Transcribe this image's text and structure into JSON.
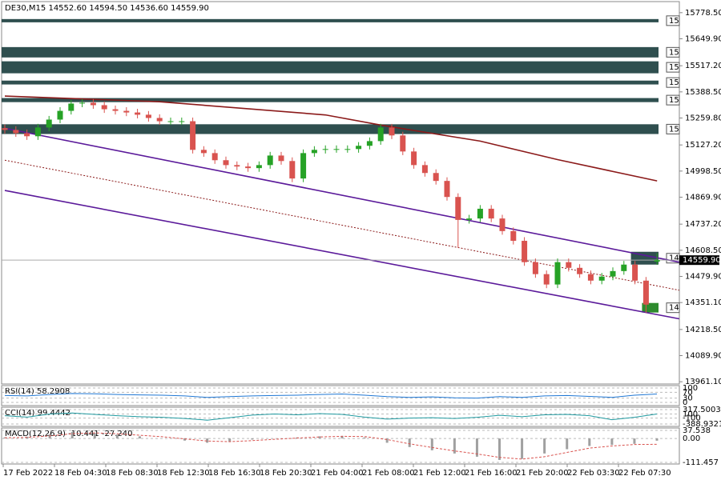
{
  "chart_data": {
    "type": "candlestick",
    "title": "DE30,M15  14552.60 14594.50 14536.60 14559.90",
    "ylim": [
      13950,
      15833
    ],
    "yticks": [
      {
        "value": 15778.5,
        "label": "15778.50"
      },
      {
        "value": 15649.9,
        "label": "15649.90"
      },
      {
        "value": 15517.2,
        "label": "15517.20"
      },
      {
        "value": 15388.5,
        "label": "15388.50"
      },
      {
        "value": 15259.8,
        "label": "15259.80"
      },
      {
        "value": 15127.2,
        "label": "15127.20"
      },
      {
        "value": 14998.5,
        "label": "14998.50"
      },
      {
        "value": 14869.9,
        "label": "14869.90"
      },
      {
        "value": 14737.2,
        "label": "14737.20"
      },
      {
        "value": 14608.5,
        "label": "14608.50"
      },
      {
        "value": 14479.9,
        "label": "14479.90"
      },
      {
        "value": 14351.1,
        "label": "14351.10"
      },
      {
        "value": 14218.5,
        "label": "14218.50"
      },
      {
        "value": 14089.9,
        "label": "14089.90"
      },
      {
        "value": 13961.1,
        "label": "13961.10"
      }
    ],
    "xtick_labels": [
      "17 Feb 2022",
      "18 Feb 04:30",
      "18 Feb 08:30",
      "18 Feb 12:30",
      "18 Feb 16:30",
      "18 Feb 20:30",
      "21 Feb 04:00",
      "21 Feb 08:00",
      "21 Feb 12:00",
      "21 Feb 16:00",
      "21 Feb 20:00",
      "22 Feb 03:30",
      "22 Feb 07:30"
    ],
    "up_color": "#26a226",
    "down_color": "#d9534f",
    "open": [
      15210,
      15201,
      15185,
      15170,
      15213,
      15252,
      15295,
      15331,
      15335,
      15323,
      15303,
      15295,
      15287,
      15276,
      15260,
      15244,
      15244,
      15244,
      15103,
      15087,
      15052,
      15028,
      15021,
      15013,
      15028,
      15075,
      15048,
      14962,
      15087,
      15103,
      15107,
      15107,
      15107,
      15123,
      15146,
      15213,
      15174,
      15095,
      15028,
      14989,
      14950,
      14871,
      14758,
      14765,
      14813,
      14765,
      14703,
      14655,
      14550,
      14491,
      14440,
      14550,
      14522,
      14491,
      14459,
      14479,
      14506,
      14538,
      14459,
      14552.6
    ],
    "high": [
      15228,
      15219,
      15203,
      15231,
      15270,
      15313,
      15349,
      15353,
      15353,
      15341,
      15321,
      15313,
      15305,
      15294,
      15278,
      15262,
      15262,
      15262,
      15121,
      15105,
      15070,
      15046,
      15039,
      15046,
      15093,
      15093,
      15066,
      15105,
      15121,
      15125,
      15125,
      15125,
      15141,
      15164,
      15231,
      15231,
      15192,
      15113,
      15046,
      15007,
      14968,
      14889,
      14783,
      14831,
      14831,
      14783,
      14721,
      14673,
      14568,
      14509,
      14568,
      14568,
      14540,
      14509,
      14497,
      14524,
      14556,
      14556,
      14477,
      14594.5
    ],
    "low": [
      15183,
      15167,
      15152,
      15152,
      15195,
      15234,
      15277,
      15313,
      15305,
      15285,
      15277,
      15269,
      15258,
      15242,
      15226,
      15226,
      15226,
      15085,
      15069,
      15034,
      15010,
      15003,
      14995,
      14995,
      15010,
      15030,
      14944,
      14944,
      15069,
      15085,
      15089,
      15089,
      15089,
      15105,
      15128,
      15156,
      15077,
      15010,
      14971,
      14932,
      14853,
      14620,
      14740,
      14747,
      14747,
      14685,
      14637,
      14532,
      14473,
      14422,
      14422,
      14504,
      14473,
      14441,
      14441,
      14461,
      14488,
      14441,
      14300,
      14536.6
    ],
    "close": [
      15201,
      15185,
      15170,
      15213,
      15252,
      15295,
      15331,
      15335,
      15323,
      15303,
      15295,
      15287,
      15276,
      15260,
      15244,
      15244,
      15244,
      15103,
      15087,
      15052,
      15028,
      15021,
      15013,
      15028,
      15075,
      15048,
      14962,
      15087,
      15103,
      15107,
      15107,
      15107,
      15123,
      15146,
      15213,
      15174,
      15095,
      15028,
      14989,
      14950,
      14871,
      14758,
      14765,
      14813,
      14765,
      14703,
      14655,
      14550,
      14491,
      14440,
      14550,
      14522,
      14491,
      14459,
      14479,
      14506,
      14538,
      14459,
      14341,
      14559.9
    ],
    "current_price": {
      "value": 14559.9,
      "label": "14559.90"
    },
    "overlays": [
      {
        "color": "#8b1a1a",
        "style": "solid",
        "x": [
          0,
          14,
          29,
          34,
          43,
          50,
          59
        ],
        "values": [
          15368,
          15340,
          15275,
          15225,
          15146,
          15055,
          14950
        ]
      },
      {
        "color": "#5b1a9a",
        "style": "solid",
        "x": [
          0,
          61
        ],
        "values": [
          15209,
          14550
        ]
      },
      {
        "color": "#5b1a9a",
        "style": "solid",
        "x": [
          0,
          61
        ],
        "values": [
          14903,
          14271
        ]
      },
      {
        "color": "#8b1a1a",
        "style": "dotted",
        "x": [
          0,
          61
        ],
        "values": [
          15052,
          14412
        ]
      }
    ],
    "zones": [
      {
        "label": "15",
        "top": 15747,
        "bottom": 15731,
        "start": 0,
        "color": "#2f4f4f"
      },
      {
        "label": "15",
        "top": 15609,
        "bottom": 15558,
        "start": 0,
        "color": "#2f4f4f"
      },
      {
        "label": "15",
        "top": 15539,
        "bottom": 15480,
        "start": 0,
        "color": "#2f4f4f"
      },
      {
        "label": "15",
        "top": 15444,
        "bottom": 15425,
        "start": 0,
        "color": "#2f4f4f"
      },
      {
        "label": "15",
        "top": 15358,
        "bottom": 15338,
        "start": 0,
        "color": "#2f4f4f"
      },
      {
        "label": "15",
        "top": 15229,
        "bottom": 15181,
        "start": 0,
        "color": "#2f4f4f"
      },
      {
        "label": "14",
        "top": 14601,
        "bottom": 14538,
        "start": 57,
        "color": "#2f4f4f"
      },
      {
        "label": "14",
        "top": 14349,
        "bottom": 14302,
        "start": 58,
        "color": "#2e8b2e"
      }
    ],
    "indicators": [
      {
        "label": "RSI(14) 58.2908",
        "color": "#1f77d4",
        "ylim": [
          0,
          100
        ],
        "yticks": [
          100,
          70,
          30,
          0
        ],
        "values": [
          48,
          45,
          55,
          62,
          60,
          55,
          52,
          50,
          45,
          35,
          40,
          45,
          48,
          50,
          55,
          58,
          50,
          40,
          35,
          38,
          32,
          30,
          40,
          35,
          45,
          48,
          42,
          35,
          50,
          58.2908
        ]
      },
      {
        "label": "CCI(14) 99.4442",
        "color": "#1f9aa0",
        "ylim": [
          -388.9321,
          317.5003
        ],
        "yticks": [
          317.5003,
          100,
          -100,
          -388.9321
        ],
        "values": [
          20,
          -50,
          100,
          150,
          80,
          20,
          -30,
          -60,
          -120,
          -200,
          -80,
          50,
          100,
          60,
          120,
          80,
          -50,
          -150,
          -100,
          -80,
          -120,
          -60,
          40,
          -30,
          60,
          80,
          20,
          -180,
          -60,
          99.4442
        ]
      },
      {
        "label": "MACD(12,26,9) -10.441 -27.240",
        "color": "#a0a0a0",
        "signal_color": "#d9534f",
        "ylim": [
          -111.457,
          37.538
        ],
        "yticks": [
          37.538,
          {
            "value": 0,
            "label": "0.00"
          },
          -111.457
        ],
        "values": [
          5,
          8,
          20,
          30,
          25,
          18,
          10,
          0,
          -10,
          -20,
          -15,
          -5,
          0,
          5,
          10,
          12,
          5,
          -20,
          -40,
          -55,
          -70,
          -85,
          -100,
          -95,
          -70,
          -50,
          -35,
          -30,
          -25,
          -10.441
        ],
        "signal": [
          3,
          5,
          12,
          22,
          26,
          22,
          15,
          8,
          -2,
          -12,
          -15,
          -10,
          -4,
          2,
          7,
          10,
          9,
          -5,
          -25,
          -42,
          -58,
          -72,
          -88,
          -96,
          -85,
          -65,
          -45,
          -35,
          -28,
          -27.24
        ]
      }
    ]
  }
}
